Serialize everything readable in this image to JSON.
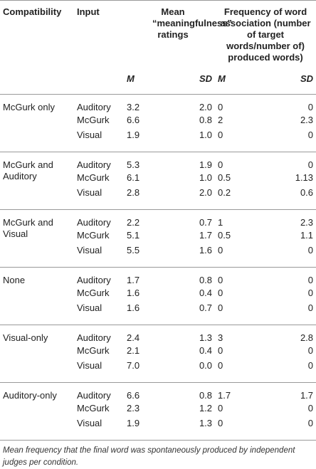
{
  "table": {
    "header": [
      "Compatibility",
      "Input",
      "Mean “meaningfulness” ratings",
      "Frequency of word association (number of target words/number of) produced words)"
    ],
    "subheader": [
      "M",
      "SD",
      "M",
      "SD"
    ],
    "groups": [
      {
        "compatibility": "McGurk only",
        "rows": [
          [
            "Auditory",
            "3.2",
            "2.0",
            "0",
            "0"
          ],
          [
            "McGurk",
            "6.6",
            "0.8",
            "2",
            "2.3"
          ],
          [
            "Visual",
            "1.9",
            "1.0",
            "0",
            "0"
          ]
        ]
      },
      {
        "compatibility": "McGurk and Auditory",
        "rows": [
          [
            "Auditory",
            "5.3",
            "1.9",
            "0",
            "0"
          ],
          [
            "McGurk",
            "6.1",
            "1.0",
            "0.5",
            "1.13"
          ],
          [
            "Visual",
            "2.8",
            "2.0",
            "0.2",
            "0.6"
          ]
        ]
      },
      {
        "compatibility": "McGurk and Visual",
        "rows": [
          [
            "Auditory",
            "2.2",
            "0.7",
            "1",
            "2.3"
          ],
          [
            "McGurk",
            "5.1",
            "1.7",
            "0.5",
            "1.1"
          ],
          [
            "Visual",
            "5.5",
            "1.6",
            "0",
            "0"
          ]
        ]
      },
      {
        "compatibility": "None",
        "rows": [
          [
            "Auditory",
            "1.7",
            "0.8",
            "0",
            "0"
          ],
          [
            "McGurk",
            "1.6",
            "0.4",
            "0",
            "0"
          ],
          [
            "Visual",
            "1.6",
            "0.7",
            "0",
            "0"
          ]
        ]
      },
      {
        "compatibility": "Visual-only",
        "rows": [
          [
            "Auditory",
            "2.4",
            "1.3",
            "3",
            "2.8"
          ],
          [
            "McGurk",
            "2.1",
            "0.4",
            "0",
            "0"
          ],
          [
            "Visual",
            "7.0",
            "0.0",
            "0",
            "0"
          ]
        ]
      },
      {
        "compatibility": "Auditory-only",
        "rows": [
          [
            "Auditory",
            "6.6",
            "0.8",
            "1.7",
            "1.7"
          ],
          [
            "McGurk",
            "2.3",
            "1.2",
            "0",
            "0"
          ],
          [
            "Visual",
            "1.9",
            "1.3",
            "0",
            "0"
          ]
        ]
      }
    ],
    "footnote": "Mean frequency that the final word was spontaneously produced by independent judges per condition."
  }
}
